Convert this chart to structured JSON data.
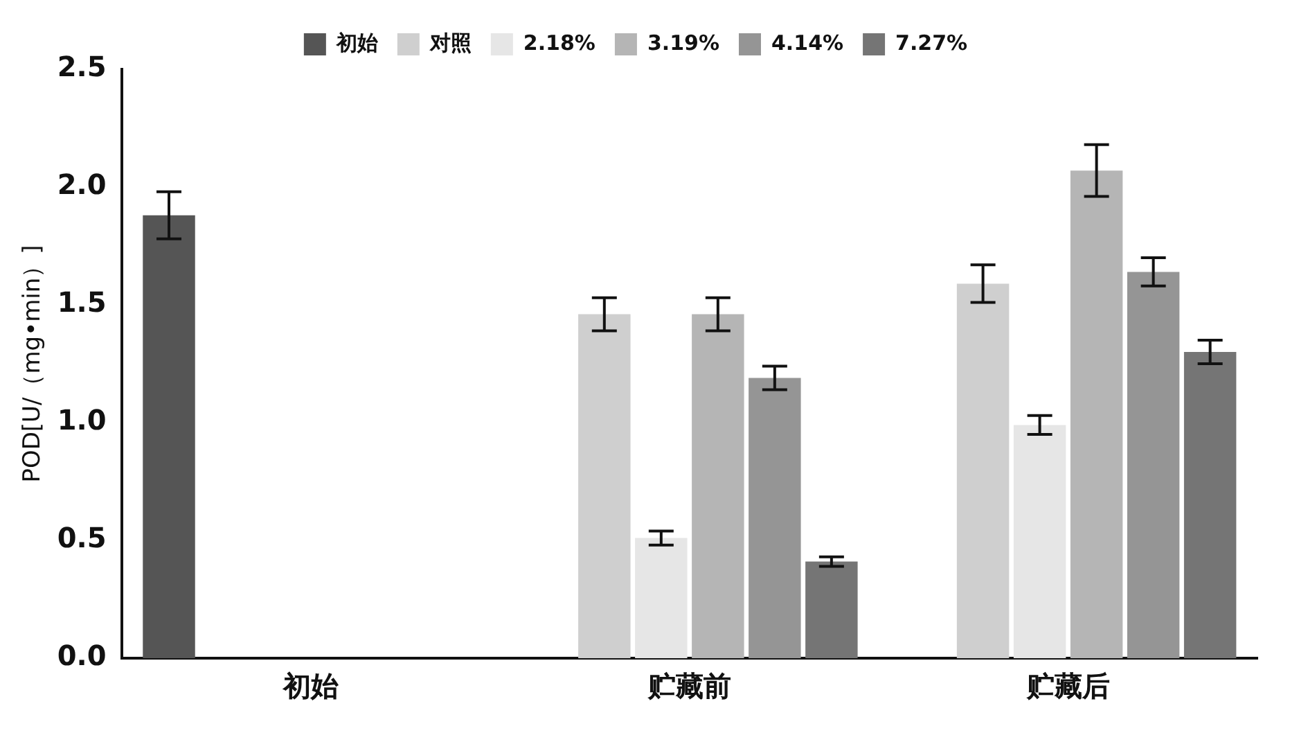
{
  "chart_data": {
    "type": "bar",
    "ylabel": "POD[U/（mg•min）]",
    "categories": [
      "初始",
      "贮藏前",
      "贮藏后"
    ],
    "series": [
      {
        "name": "初始",
        "color": "#555555",
        "values": [
          1.88,
          null,
          null
        ],
        "errors": [
          0.1,
          null,
          null
        ]
      },
      {
        "name": "对照",
        "color": "#cfcfcf",
        "values": [
          null,
          1.46,
          1.59
        ],
        "errors": [
          null,
          0.07,
          0.08
        ]
      },
      {
        "name": "2.18%",
        "color": "#e6e6e6",
        "values": [
          null,
          0.51,
          0.99
        ],
        "errors": [
          null,
          0.03,
          0.04
        ]
      },
      {
        "name": "3.19%",
        "color": "#b5b5b5",
        "values": [
          null,
          1.46,
          2.07
        ],
        "errors": [
          null,
          0.07,
          0.11
        ]
      },
      {
        "name": "4.14%",
        "color": "#959595",
        "values": [
          null,
          1.19,
          1.64
        ],
        "errors": [
          null,
          0.05,
          0.06
        ]
      },
      {
        "name": "7.27%",
        "color": "#757575",
        "values": [
          null,
          0.41,
          1.3
        ],
        "errors": [
          null,
          0.02,
          0.05
        ]
      }
    ],
    "ylim": [
      0,
      2.5
    ],
    "yticks": [
      {
        "value": 0,
        "label": "0.0"
      },
      {
        "value": 0.5,
        "label": "0.5"
      },
      {
        "value": 1,
        "label": "1.0"
      },
      {
        "value": 1.5,
        "label": "1.5"
      },
      {
        "value": 2,
        "label": "2.0"
      },
      {
        "value": 2.5,
        "label": "2.5"
      }
    ],
    "grid": false,
    "legend": "top"
  }
}
